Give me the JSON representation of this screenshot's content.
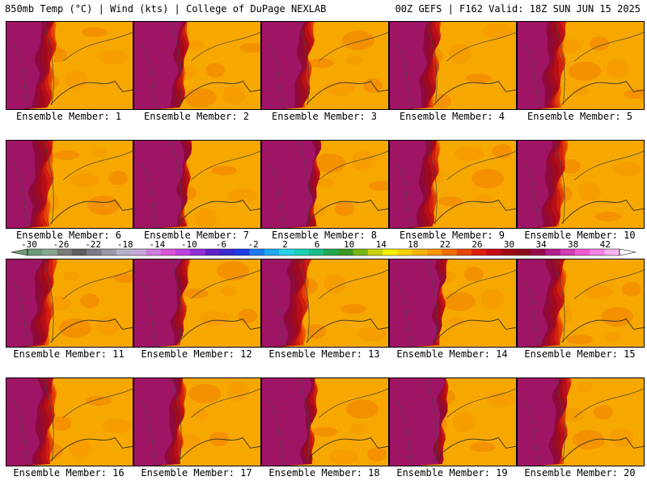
{
  "header": {
    "left_title": "850mb Temp (°C) | Wind (kts) | College of DuPage NEXLAB",
    "right_title": "00Z GEFS | F162 Valid: 18Z SUN JUN 15 2025"
  },
  "panels": [
    {
      "label": "Ensemble Member: 1",
      "cool_extent": 0.22
    },
    {
      "label": "Ensemble Member: 2",
      "cool_extent": 0.3
    },
    {
      "label": "Ensemble Member: 3",
      "cool_extent": 0.26
    },
    {
      "label": "Ensemble Member: 4",
      "cool_extent": 0.24
    },
    {
      "label": "Ensemble Member: 5",
      "cool_extent": 0.2
    },
    {
      "label": "Ensemble Member: 6",
      "cool_extent": 0.18
    },
    {
      "label": "Ensemble Member: 7",
      "cool_extent": 0.34
    },
    {
      "label": "Ensemble Member: 8",
      "cool_extent": 0.36
    },
    {
      "label": "Ensemble Member: 9",
      "cool_extent": 0.22
    },
    {
      "label": "Ensemble Member: 10",
      "cool_extent": 0.2
    },
    {
      "label": "Ensemble Member: 11",
      "cool_extent": 0.2
    },
    {
      "label": "Ensemble Member: 12",
      "cool_extent": 0.3
    },
    {
      "label": "Ensemble Member: 13",
      "cool_extent": 0.18
    },
    {
      "label": "Ensemble Member: 14",
      "cool_extent": 0.34
    },
    {
      "label": "Ensemble Member: 15",
      "cool_extent": 0.2
    },
    {
      "label": "Ensemble Member: 16",
      "cool_extent": 0.22
    },
    {
      "label": "Ensemble Member: 17",
      "cool_extent": 0.26
    },
    {
      "label": "Ensemble Member: 18",
      "cool_extent": 0.32
    },
    {
      "label": "Ensemble Member: 19",
      "cool_extent": 0.36
    },
    {
      "label": "Ensemble Member: 20",
      "cool_extent": 0.26
    }
  ],
  "colorbar": {
    "tick_labels": [
      "-30",
      "-26",
      "-22",
      "-18",
      "-14",
      "-10",
      "-6",
      "-2",
      "2",
      "6",
      "10",
      "14",
      "18",
      "22",
      "26",
      "30",
      "34",
      "38",
      "42"
    ],
    "colors": [
      "#6e9a7a",
      "#87a890",
      "#7a7a7a",
      "#5e5e5e",
      "#7b7b88",
      "#9999a8",
      "#b4b4c8",
      "#c8a8d8",
      "#cf7de0",
      "#da55da",
      "#c040e0",
      "#9030d8",
      "#6020c8",
      "#3a2ad0",
      "#1e3ce6",
      "#1e78f0",
      "#20aaf0",
      "#28d2e8",
      "#18d2b4",
      "#18c08c",
      "#20a850",
      "#3c9828",
      "#78b414",
      "#c8d20a",
      "#f8f000",
      "#f8d200",
      "#f8b400",
      "#f89600",
      "#f06e00",
      "#e84600",
      "#e01e0a",
      "#c80a14",
      "#a00a14",
      "#8c0a1e",
      "#960a50",
      "#b41e8c",
      "#d23cb4",
      "#f05ad2",
      "#f882e6",
      "#fab4f0"
    ]
  },
  "palette": {
    "warm": [
      "#f7a800",
      "#f59a00",
      "#f28a00",
      "#f07400",
      "#ea5a00",
      "#e23e05",
      "#d0200d",
      "#b80f18",
      "#a00a1e",
      "#8e0a3a",
      "#a01466",
      "#b42888"
    ]
  }
}
